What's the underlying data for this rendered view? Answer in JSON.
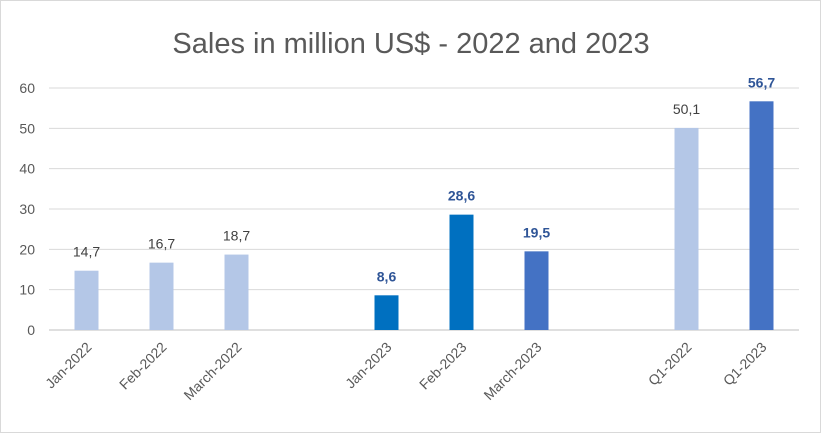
{
  "chart_data": {
    "type": "bar",
    "title": "Sales in million US$ - 2022 and 2023",
    "xlabel": "",
    "ylabel": "",
    "ylim": [
      0,
      60
    ],
    "yticks": [
      0,
      10,
      20,
      30,
      40,
      50,
      60
    ],
    "grid": true,
    "legend": "none",
    "categories": [
      "Jan-2022",
      "Feb-2022",
      "March-2022",
      "",
      "Jan-2023",
      "Feb-2023",
      "March-2023",
      "",
      "Q1-2022",
      "Q1-2023"
    ],
    "values": [
      14.7,
      16.7,
      18.7,
      null,
      8.6,
      28.6,
      19.5,
      null,
      50.1,
      56.7
    ],
    "data_labels": [
      "14,7",
      "16,7",
      "18,7",
      "",
      "8,6",
      "28,6",
      "19,5",
      "",
      "50,1",
      "56,7"
    ],
    "colors": [
      "#b4c7e7",
      "#b4c7e7",
      "#b4c7e7",
      "",
      "#0070c0",
      "#0070c0",
      "#4472c4",
      "",
      "#b4c7e7",
      "#4472c4"
    ],
    "label_bold": [
      false,
      false,
      false,
      false,
      true,
      true,
      true,
      false,
      false,
      true
    ]
  }
}
